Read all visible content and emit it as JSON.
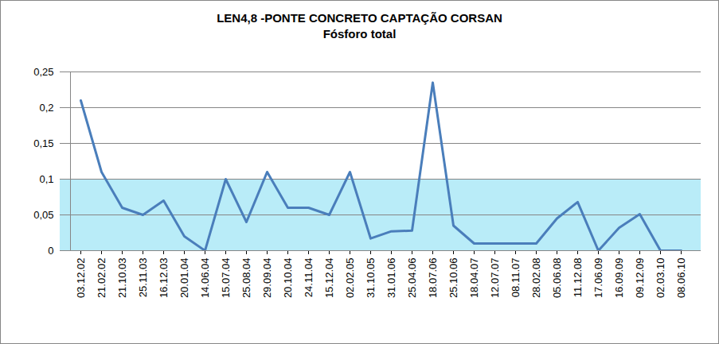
{
  "chart_data": {
    "type": "line",
    "title": "LEN4,8 -PONTE CONCRETO CAPTAÇÃO CORSAN",
    "subtitle": "Fósforo total",
    "categories": [
      "03.12.02",
      "21.02.02",
      "21.10.03",
      "25.11.03",
      "16.12.03",
      "20.01.04",
      "14.06.04",
      "15.07.04",
      "25.08.04",
      "29.09.04",
      "20.10.04",
      "24.11.04",
      "15.12.04",
      "02.02.05",
      "31.10.05",
      "31.01.06",
      "25.04.06",
      "18.07.06",
      "25.10.06",
      "18.04.07",
      "12.07.07",
      "08.11.07",
      "28.02.08",
      "05.06.08",
      "11.12.08",
      "17.06.09",
      "16.09.09",
      "09.12.09",
      "02.03.10",
      "08.06.10"
    ],
    "values": [
      0.21,
      0.11,
      0.06,
      0.05,
      0.07,
      0.02,
      0,
      0.1,
      0.04,
      0.11,
      0.06,
      0.06,
      0.05,
      0.11,
      0.017,
      0.027,
      0.028,
      0.235,
      0.035,
      0.01,
      0.01,
      0.01,
      0.01,
      0.045,
      0.068,
      0,
      0.032,
      0.051,
      0,
      0
    ],
    "color": "#4a7ebb",
    "shaded_range": [
      0,
      0.1
    ],
    "ylim": [
      0,
      0.25
    ],
    "yticks": [
      0,
      {
        "value": 0.05,
        "label": "0,05"
      },
      {
        "value": 0.1,
        "label": "0,1"
      },
      {
        "value": 0.15,
        "label": "0,15"
      },
      {
        "value": 0.2,
        "label": "0,2"
      },
      {
        "value": 0.25,
        "label": "0,25"
      }
    ],
    "grid": true
  }
}
